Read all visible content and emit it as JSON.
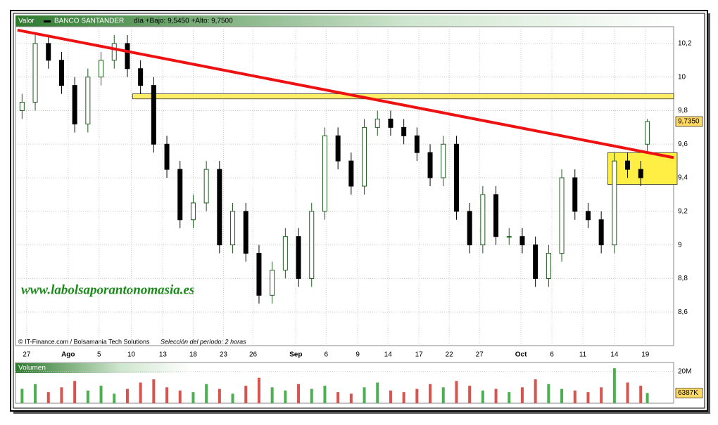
{
  "chart_data": [
    {
      "type": "candlestick",
      "label": "Valor",
      "title": "BANCO SANTANDER",
      "subtitle": "día +Bajo: 9,5450 +Alto: 9,7500",
      "source": "© IT-Finance.com / Bolsamania Tech Solutions",
      "period": "Selección del período: 2 horas",
      "watermark": "www.labolsaporantonomasia.es",
      "x": [
        1,
        3,
        5,
        7,
        9,
        11,
        13,
        15,
        17,
        19,
        21,
        23,
        25,
        27,
        29,
        31,
        33,
        35,
        37,
        39,
        41,
        43,
        45,
        47,
        49,
        51,
        53,
        55,
        57,
        59,
        61,
        63,
        65,
        67,
        69,
        71,
        73,
        75,
        77,
        79,
        81,
        83,
        85,
        87,
        89,
        91,
        93,
        95,
        96
      ],
      "open": [
        9.8,
        9.85,
        10.2,
        10.1,
        9.95,
        9.72,
        10.0,
        10.1,
        10.2,
        10.05,
        9.95,
        9.6,
        9.45,
        9.15,
        9.25,
        9.45,
        9.0,
        9.2,
        8.95,
        8.7,
        8.85,
        9.05,
        8.8,
        9.2,
        9.65,
        9.5,
        9.35,
        9.7,
        9.75,
        9.7,
        9.65,
        9.55,
        9.4,
        9.6,
        9.2,
        9.0,
        9.3,
        9.05,
        9.05,
        9.0,
        8.8,
        8.95,
        9.4,
        9.2,
        9.15,
        9.0,
        9.5,
        9.45,
        9.6
      ],
      "high": [
        9.9,
        10.25,
        10.25,
        10.15,
        10.0,
        10.05,
        10.15,
        10.25,
        10.25,
        10.1,
        10.0,
        9.65,
        9.5,
        9.3,
        9.5,
        9.5,
        9.25,
        9.25,
        9.0,
        8.9,
        9.1,
        9.1,
        9.25,
        9.7,
        9.7,
        9.55,
        9.75,
        9.8,
        9.8,
        9.75,
        9.7,
        9.6,
        9.65,
        9.65,
        9.25,
        9.35,
        9.35,
        9.1,
        9.1,
        9.05,
        9.0,
        9.45,
        9.45,
        9.25,
        9.2,
        9.55,
        9.55,
        9.5,
        9.75
      ],
      "low": [
        9.75,
        9.8,
        10.05,
        9.9,
        9.67,
        9.67,
        9.95,
        10.05,
        10.0,
        9.9,
        9.55,
        9.4,
        9.1,
        9.1,
        9.2,
        8.95,
        8.95,
        8.9,
        8.65,
        8.65,
        8.8,
        8.75,
        8.75,
        9.15,
        9.45,
        9.3,
        9.3,
        9.65,
        9.65,
        9.6,
        9.5,
        9.35,
        9.35,
        9.15,
        8.95,
        8.95,
        9.0,
        9.0,
        8.95,
        8.75,
        8.75,
        8.9,
        9.15,
        9.1,
        8.95,
        8.95,
        9.4,
        9.35,
        9.545
      ],
      "close": [
        9.85,
        10.2,
        10.1,
        9.95,
        9.72,
        10.0,
        10.1,
        10.2,
        10.05,
        9.95,
        9.6,
        9.45,
        9.15,
        9.25,
        9.45,
        9.0,
        9.2,
        8.95,
        8.7,
        8.85,
        9.05,
        8.8,
        9.2,
        9.65,
        9.5,
        9.35,
        9.7,
        9.75,
        9.7,
        9.65,
        9.55,
        9.4,
        9.6,
        9.2,
        9.0,
        9.3,
        9.05,
        9.05,
        9.0,
        8.8,
        8.95,
        9.4,
        9.2,
        9.15,
        9.0,
        9.5,
        9.45,
        9.4,
        9.735
      ],
      "last_label": {
        "value": 9.735,
        "label": "9,7350"
      },
      "up_color": "#1f5a1f",
      "down_color": "#000000",
      "trendline": {
        "x": [
          0.3,
          100
        ],
        "y": [
          10.28,
          9.52
        ],
        "color": "#ee1111"
      },
      "band": {
        "x": [
          17.8,
          100
        ],
        "y": [
          9.87,
          9.9
        ],
        "color": "#ffee66"
      },
      "box": {
        "x": [
          90,
          100
        ],
        "y": [
          9.36,
          9.55
        ],
        "color": "#ffee44"
      },
      "xlim": [
        0,
        100
      ],
      "ylim": [
        8.4,
        10.3
      ],
      "xticks": [
        {
          "value": 1.7,
          "label": "27"
        },
        {
          "value": 8.0,
          "label": "Ago"
        },
        {
          "value": 12.7,
          "label": "5"
        },
        {
          "value": 17.6,
          "label": "10"
        },
        {
          "value": 22.4,
          "label": "13"
        },
        {
          "value": 27.0,
          "label": "18"
        },
        {
          "value": 31.6,
          "label": "23"
        },
        {
          "value": 36.1,
          "label": "26"
        },
        {
          "value": 42.6,
          "label": "Sep"
        },
        {
          "value": 47.2,
          "label": "6"
        },
        {
          "value": 52.0,
          "label": "9"
        },
        {
          "value": 56.6,
          "label": "14"
        },
        {
          "value": 61.3,
          "label": "17"
        },
        {
          "value": 65.9,
          "label": "22"
        },
        {
          "value": 70.5,
          "label": "27"
        },
        {
          "value": 76.8,
          "label": "Oct"
        },
        {
          "value": 81.5,
          "label": "6"
        },
        {
          "value": 86.2,
          "label": "11"
        },
        {
          "value": 91.0,
          "label": "14"
        },
        {
          "value": 95.7,
          "label": "19"
        }
      ],
      "yticks": [
        {
          "value": 8.6,
          "label": "8,6"
        },
        {
          "value": 8.8,
          "label": "8,8"
        },
        9,
        {
          "value": 9.2,
          "label": "9,2"
        },
        {
          "value": 9.4,
          "label": "9,4"
        },
        {
          "value": 9.6,
          "label": "9,6"
        },
        {
          "value": 9.8,
          "label": "9,8"
        },
        10,
        {
          "value": 10.2,
          "label": "10,2"
        }
      ],
      "grid": true
    },
    {
      "type": "bar",
      "title": "Volumen",
      "values": [
        9000000,
        12000000,
        7000000,
        10000000,
        14000000,
        8000000,
        11000000,
        6000000,
        9000000,
        13000000,
        15000000,
        10000000,
        8000000,
        7000000,
        12000000,
        9000000,
        6000000,
        11000000,
        16000000,
        10000000,
        8000000,
        12000000,
        9000000,
        11000000,
        7000000,
        6000000,
        10000000,
        13000000,
        8000000,
        7000000,
        9000000,
        12000000,
        10000000,
        14000000,
        11000000,
        8000000,
        9000000,
        7000000,
        10000000,
        15000000,
        12000000,
        9000000,
        8000000,
        7000000,
        10000000,
        22000000,
        13000000,
        11000000,
        6387000
      ],
      "last_label": {
        "value": 6387000,
        "label": "6387K"
      },
      "ylim": [
        0,
        25600000
      ],
      "yticks": [
        {
          "value": 20000000,
          "label": "20M"
        }
      ],
      "grid": true
    }
  ]
}
